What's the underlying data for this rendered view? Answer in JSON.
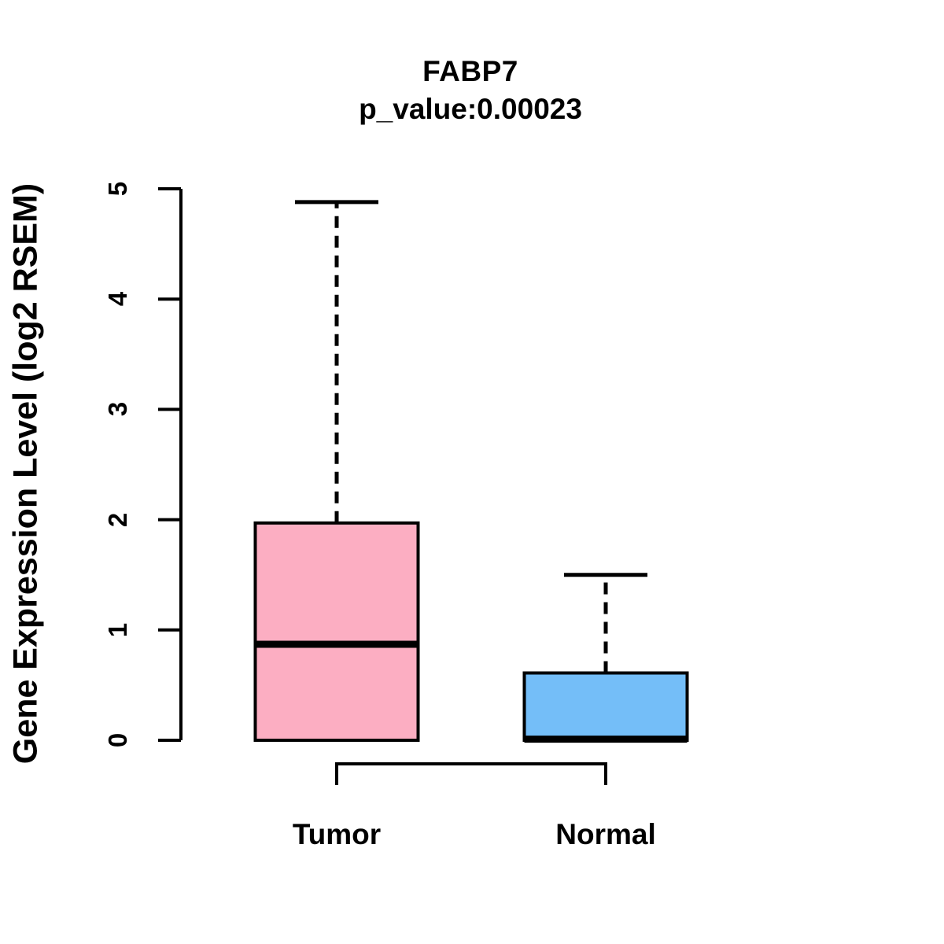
{
  "chart_data": {
    "type": "boxplot",
    "title": "FABP7",
    "subtitle": "p_value:0.00023",
    "ylabel": "Gene Expression Level (log2 RSEM)",
    "xlabel": "",
    "ylim": [
      0,
      5
    ],
    "yticks": [
      0,
      1,
      2,
      3,
      4,
      5
    ],
    "categories": [
      "Tumor",
      "Normal"
    ],
    "series": [
      {
        "name": "Tumor",
        "fill_color": "#FCAEC2",
        "whisker_low": 0,
        "q1": 0,
        "median": 0.87,
        "q3": 1.97,
        "whisker_high": 4.88
      },
      {
        "name": "Normal",
        "fill_color": "#74BEF8",
        "whisker_low": 0,
        "q1": 0,
        "median": 0.01,
        "q3": 0.61,
        "whisker_high": 1.5
      }
    ],
    "comparison_bracket": {
      "from": "Tumor",
      "to": "Normal"
    },
    "stroke_color": "#000000",
    "background": "#FFFFFF",
    "grid": false,
    "legend": false
  }
}
